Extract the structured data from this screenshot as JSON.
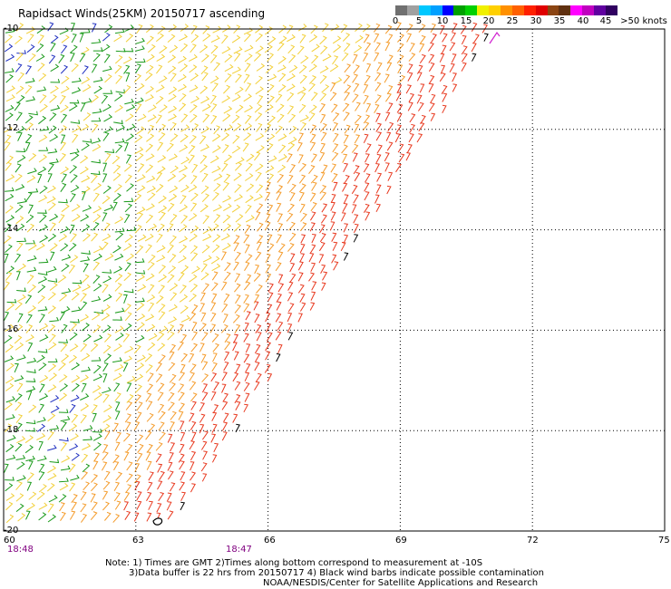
{
  "title": "Rapidsact Winds(25KM) 20150717 ascending",
  "legend": {
    "labels": [
      "0",
      "5",
      "10",
      "15",
      "20",
      "25",
      "30",
      "35",
      "40",
      "45",
      ">50 knots"
    ],
    "colors": [
      "#707070",
      "#a0a0a0",
      "#00c8ff",
      "#00a0ff",
      "#0000ff",
      "#00a000",
      "#00d000",
      "#f0f000",
      "#ffd000",
      "#ff9000",
      "#ff6000",
      "#ff2000",
      "#e00000",
      "#8b4513",
      "#603010",
      "#ff00ff",
      "#c000c0",
      "#6000a0",
      "#300060"
    ]
  },
  "axes": {
    "lon_labels": [
      "60",
      "63",
      "66",
      "69",
      "72",
      "75"
    ],
    "lat_labels": [
      "-10",
      "-12",
      "-14",
      "-16",
      "-18",
      "-20"
    ]
  },
  "times": [
    "18:48",
    "18:47"
  ],
  "notes": {
    "line1": "Note: 1) Times are GMT 2)Times along bottom correspond to measurement at -10S",
    "line2": "3)Data buffer is 22 hrs from 20150717 4) Black wind barbs indicate possible contamination",
    "line3": "NOAA/NESDIS/Center for Satellite Applications and Research"
  },
  "map_colors": {
    "grid": "#000000",
    "green": "#1a9a1a",
    "yellow": "#f2cf38",
    "orange": "#f49b2a",
    "red": "#e8391f",
    "blue": "#2030c0",
    "contamination": "#000000",
    "magenta": "#d020d0"
  }
}
